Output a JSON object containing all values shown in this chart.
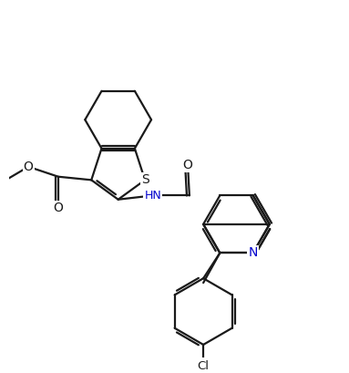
{
  "background_color": "#ffffff",
  "line_color": "#1a1a1a",
  "lw": 1.6,
  "figsize": [
    3.83,
    4.09
  ],
  "dpi": 100,
  "xlim": [
    0,
    10
  ],
  "ylim": [
    0,
    10.7
  ]
}
